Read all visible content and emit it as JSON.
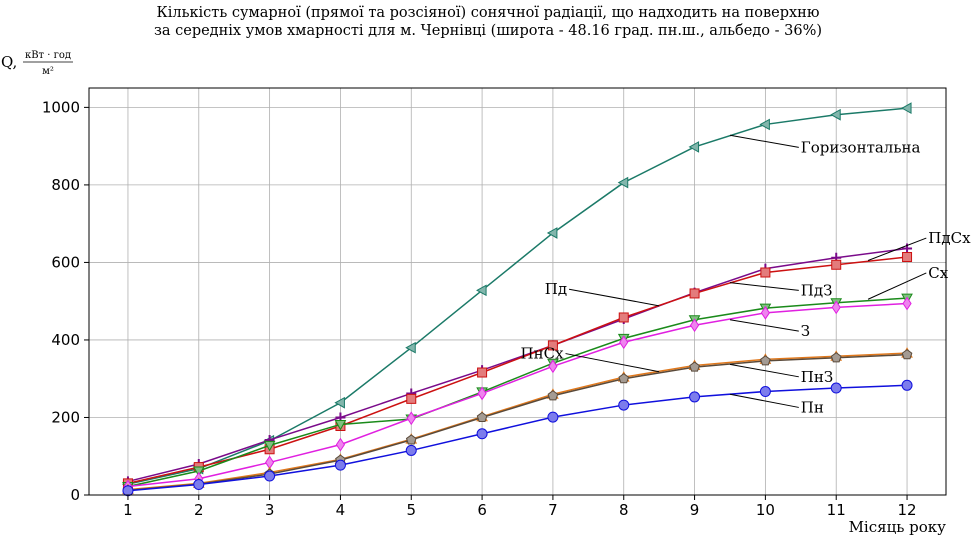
{
  "title": {
    "line1": "Кількість сумарної (прямої та розсіяної) сонячної радіації, що надходить на поверхню",
    "line2": "за середніх умов хмарності для м. Чернівці (широта - 48.16 град. пн.ш., альбедо - 36%)"
  },
  "chart_data": {
    "type": "line",
    "title": "Кількість сумарної (прямої та розсіяної) сонячної радіації, що надходить на поверхню за середніх умов хмарності для м. Чернівці (широта - 48.16 град. пн.ш., альбедо - 36%)",
    "ylabel_prefix": "Q,",
    "ylabel_num": "кВт · год",
    "ylabel_den": "м²",
    "xlabel": "Місяць року",
    "x": [
      1,
      2,
      3,
      4,
      5,
      6,
      7,
      8,
      9,
      10,
      11,
      12
    ],
    "xlim": [
      0.45,
      12.55
    ],
    "ylim": [
      0,
      1050
    ],
    "yticks": [
      0,
      200,
      400,
      600,
      800,
      1000
    ],
    "grid": true,
    "series": [
      {
        "name": "Горизонтальна",
        "color": "#1b7a68",
        "marker": "tri-left",
        "values": [
          28,
          68,
          140,
          238,
          380,
          528,
          676,
          806,
          898,
          956,
          981,
          998
        ]
      },
      {
        "name": "ПдСх",
        "color": "#7a0a8a",
        "marker": "plus",
        "values": [
          35,
          80,
          142,
          200,
          262,
          322,
          386,
          454,
          522,
          584,
          612,
          636
        ]
      },
      {
        "name": "ПдЗ",
        "color": "#cc1111",
        "marker": "square",
        "values": [
          30,
          72,
          118,
          178,
          248,
          316,
          386,
          458,
          520,
          574,
          594,
          614
        ]
      },
      {
        "name": "Сх",
        "color": "#1a8a1a",
        "marker": "tri-down",
        "values": [
          22,
          62,
          128,
          182,
          196,
          266,
          340,
          404,
          452,
          482,
          496,
          508
        ]
      },
      {
        "name": "З",
        "color": "#e020e0",
        "marker": "diamond",
        "values": [
          22,
          42,
          84,
          130,
          198,
          262,
          332,
          394,
          438,
          470,
          484,
          494
        ]
      },
      {
        "name": "ПнЗ",
        "color": "#e0781c",
        "marker": "tri-up",
        "values": [
          14,
          30,
          58,
          92,
          144,
          202,
          260,
          304,
          334,
          350,
          358,
          366
        ]
      },
      {
        "name": "ПнСх",
        "color": "#5a4a3a",
        "marker": "pentagon",
        "values": [
          12,
          28,
          54,
          90,
          142,
          200,
          256,
          300,
          330,
          346,
          354,
          362
        ]
      },
      {
        "name": "Пн",
        "color": "#1010dd",
        "marker": "circle",
        "values": [
          11,
          27,
          49,
          77,
          115,
          158,
          201,
          232,
          253,
          267,
          276,
          283
        ]
      }
    ],
    "annotations": [
      {
        "text": "Горизонтальна",
        "target_x": 9.5,
        "target_y": 928,
        "label_x": 10.5,
        "label_y": 884,
        "align": "start"
      },
      {
        "text": "ПдСх",
        "target_x": 11.45,
        "target_y": 605,
        "label_x": 12.3,
        "label_y": 650,
        "align": "start"
      },
      {
        "text": "Сх",
        "target_x": 11.45,
        "target_y": 505,
        "label_x": 12.3,
        "label_y": 560,
        "align": "start"
      },
      {
        "text": "ПдЗ",
        "target_x": 9.5,
        "target_y": 548,
        "label_x": 10.5,
        "label_y": 515,
        "align": "start"
      },
      {
        "text": "Пд",
        "target_x": 8.5,
        "target_y": 488,
        "label_x": 7.2,
        "label_y": 518,
        "align": "end"
      },
      {
        "text": "З",
        "target_x": 9.5,
        "target_y": 452,
        "label_x": 10.5,
        "label_y": 410,
        "align": "start"
      },
      {
        "text": "ПнСх",
        "target_x": 8.5,
        "target_y": 318,
        "label_x": 7.15,
        "label_y": 352,
        "align": "end"
      },
      {
        "text": "ПнЗ",
        "target_x": 9.5,
        "target_y": 337,
        "label_x": 10.5,
        "label_y": 292,
        "align": "start"
      },
      {
        "text": "Пн",
        "target_x": 9.5,
        "target_y": 260,
        "label_x": 10.5,
        "label_y": 213,
        "align": "start"
      }
    ]
  }
}
